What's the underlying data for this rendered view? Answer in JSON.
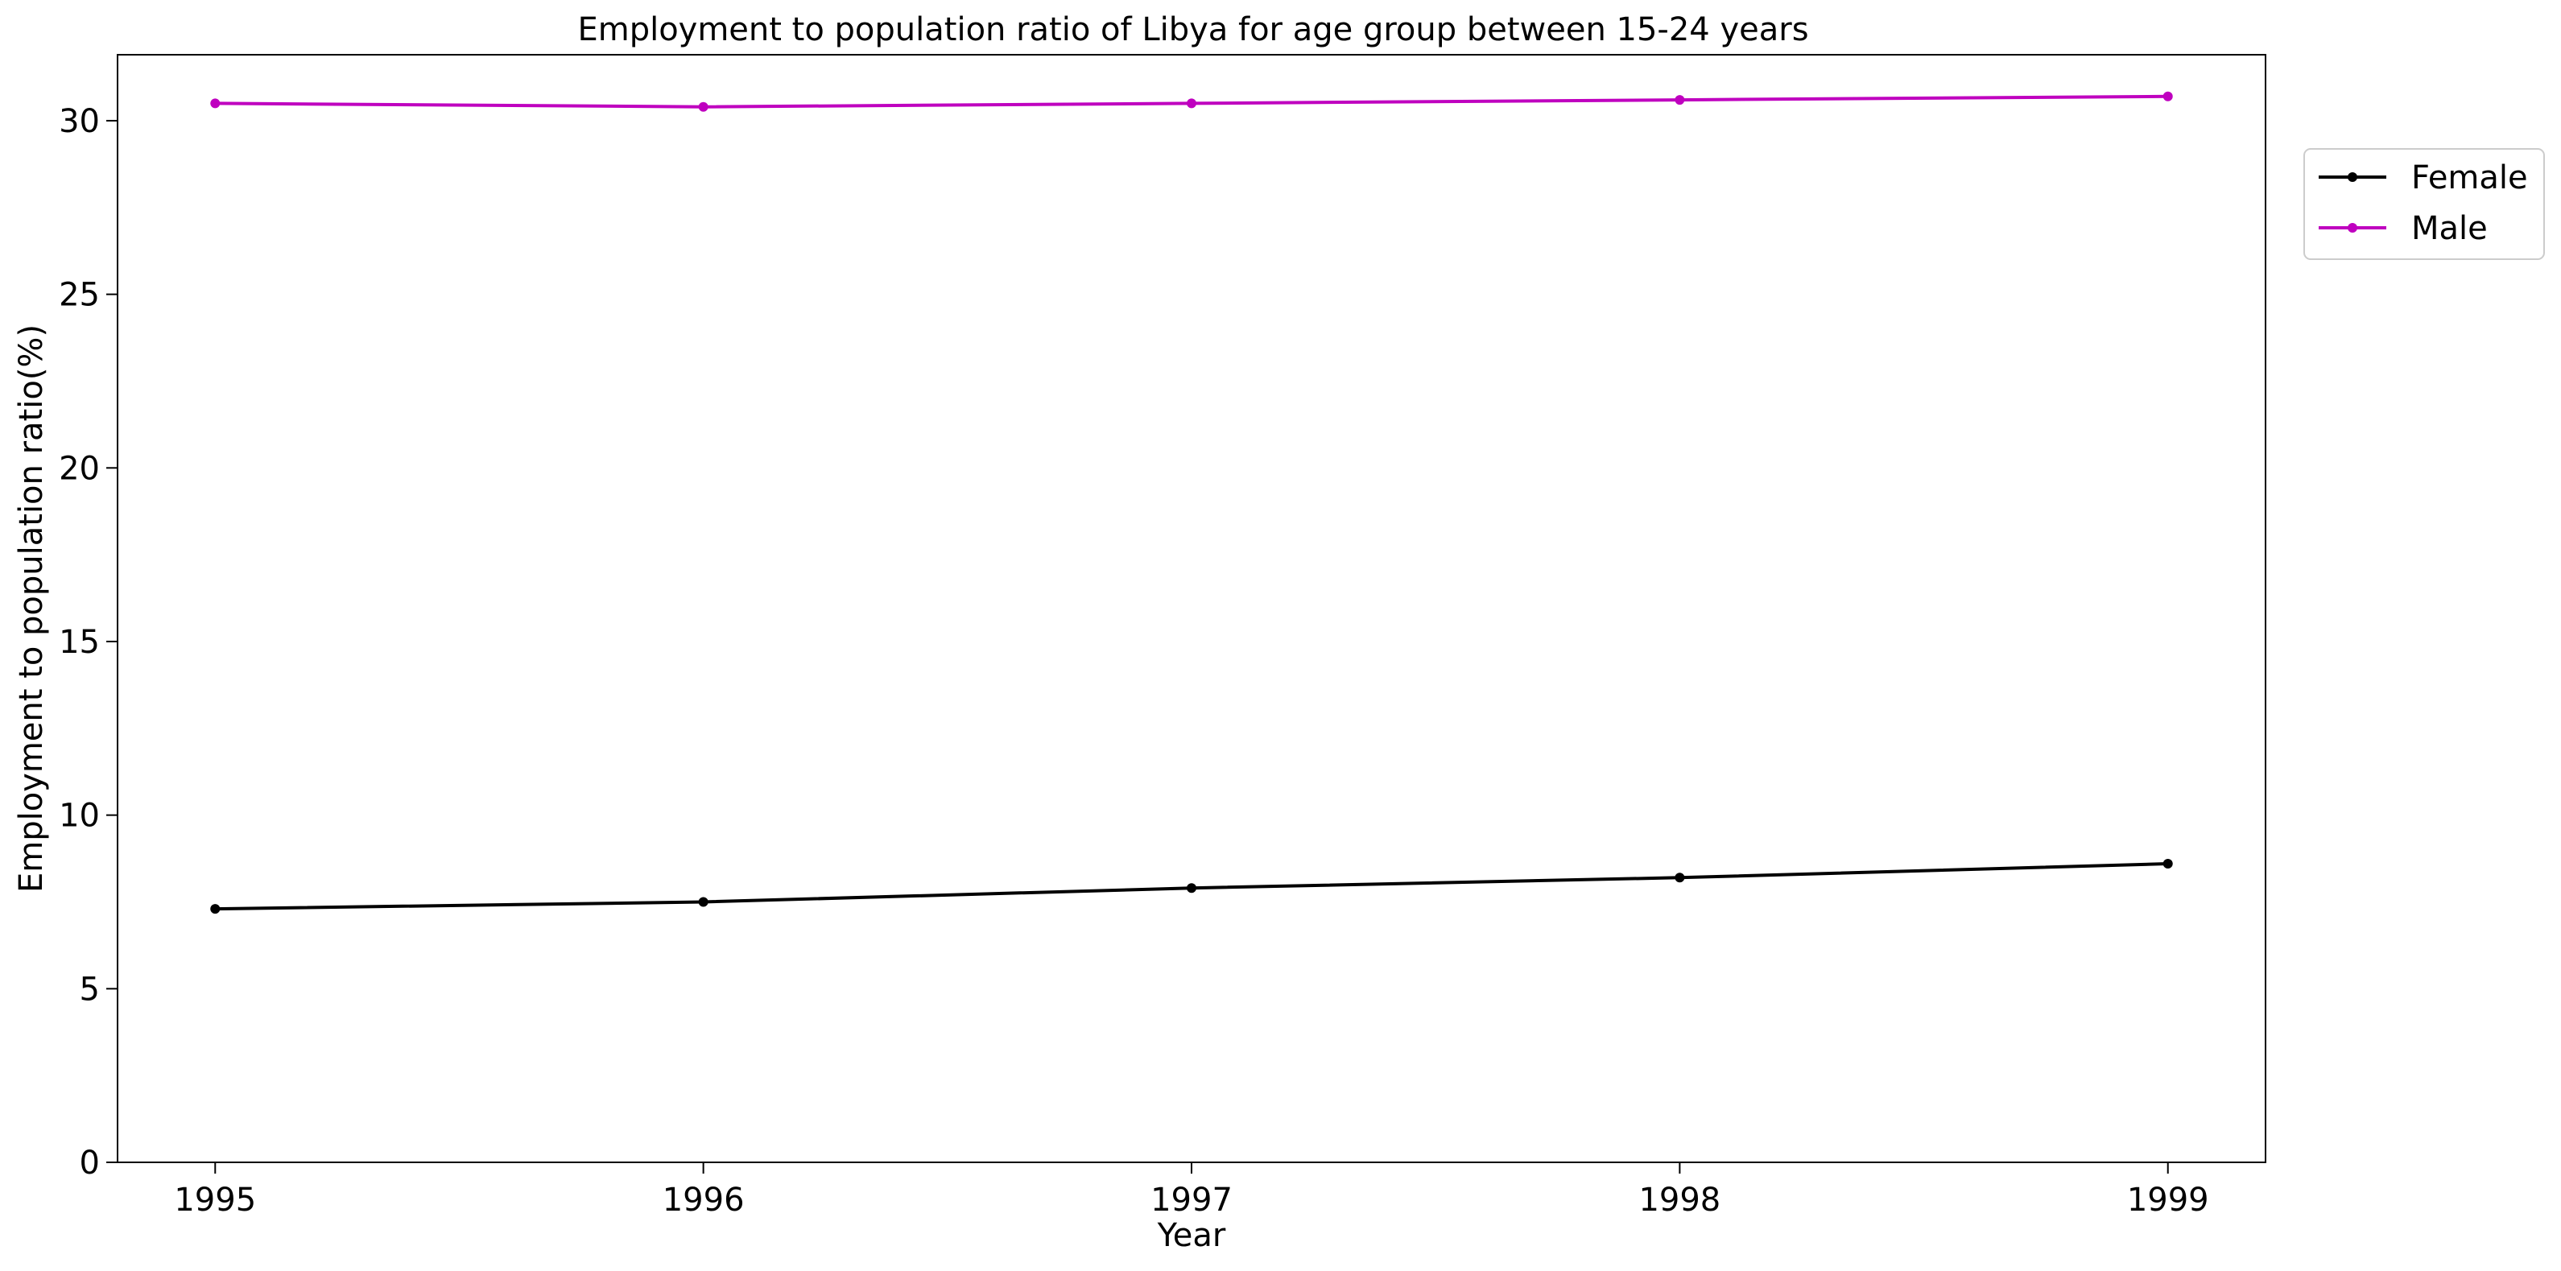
{
  "chart_data": {
    "type": "line",
    "title": "Employment to population ratio of Libya for age group between 15-24 years",
    "xlabel": "Year",
    "ylabel": "Employment to population ratio(%)",
    "x": [
      1995,
      1996,
      1997,
      1998,
      1999
    ],
    "x_tick_labels": [
      "1995",
      "1996",
      "1997",
      "1998",
      "1999"
    ],
    "y_ticks": [
      0,
      5,
      10,
      15,
      20,
      25,
      30
    ],
    "y_tick_labels": [
      "0",
      "5",
      "10",
      "15",
      "20",
      "25",
      "30"
    ],
    "xlim": [
      1994.8,
      1999.2
    ],
    "ylim": [
      0,
      31.9
    ],
    "grid": false,
    "legend_position": "upper-right-outside",
    "series": [
      {
        "name": "Female",
        "color": "#000000",
        "values": [
          7.3,
          7.5,
          7.9,
          8.2,
          8.6
        ]
      },
      {
        "name": "Male",
        "color": "#bf00bf",
        "values": [
          30.5,
          30.4,
          30.5,
          30.6,
          30.7
        ]
      }
    ]
  }
}
